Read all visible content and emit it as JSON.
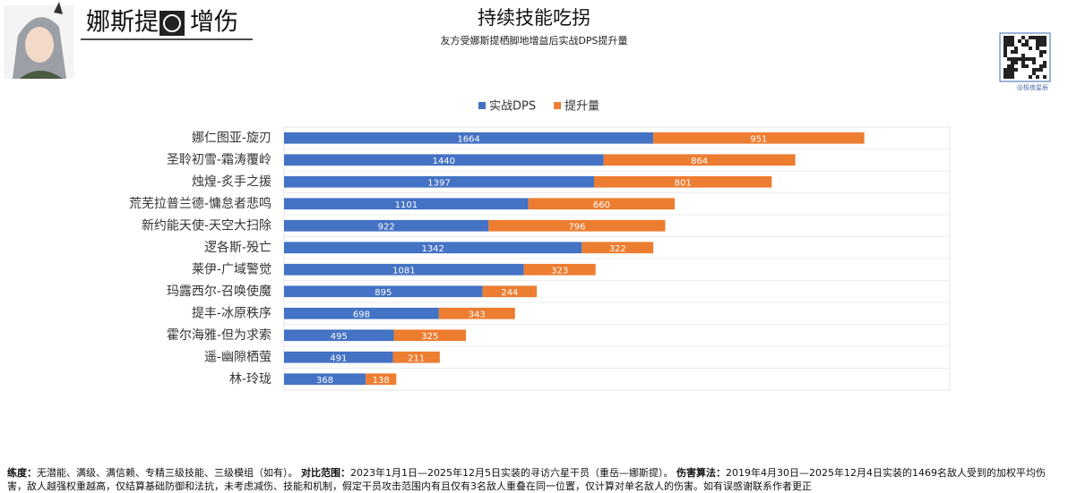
{
  "header": {
    "title_left": "娜斯提",
    "title_right": "增伤",
    "watermark": "@极夜星辰"
  },
  "chart_data": {
    "type": "bar",
    "orientation": "horizontal",
    "stacked": true,
    "title": "持续技能吃拐",
    "subtitle": "友方受娜斯提栖脚地增益后实战DPS提升量",
    "categories": [
      "娜仁图亚-旋刃",
      "圣聆初雪-霜涛覆岭",
      "烛煌-炙手之援",
      "荒芜拉普兰德-慵怠者悲鸣",
      "新约能天使-天空大扫除",
      "逻各斯-殁亡",
      "莱伊-广域警觉",
      "玛露西尔-召唤使魔",
      "提丰-冰原秩序",
      "霍尔海雅-但为求索",
      "遥-幽隙栖萤",
      "林-玲珑"
    ],
    "series": [
      {
        "name": "实战DPS",
        "color": "#4472c4",
        "values": [
          1664,
          1440,
          1397,
          1101,
          922,
          1342,
          1081,
          895,
          698,
          495,
          491,
          368
        ]
      },
      {
        "name": "提升量",
        "color": "#ed7d31",
        "values": [
          951,
          864,
          801,
          660,
          796,
          322,
          323,
          244,
          343,
          325,
          211,
          138
        ]
      }
    ],
    "xlim": [
      0,
      3000
    ],
    "legend": "top"
  },
  "footer": [
    {
      "label": "练度：",
      "text": "无潜能、满级、满信赖、专精三级技能、三级模组（如有）。"
    },
    {
      "label": "对比范围：",
      "text": "2023年1月1日—2025年12月5日实装的寻访六星干员（重岳—娜斯提）。"
    },
    {
      "label": "伤害算法：",
      "text": "2019年4月30日—2025年12月4日实装的1469名敌人受到的加权平均伤害，敌人越强权重越高，仅结算基础防御和法抗，未考虑减伤、技能和机制，假定干员攻击范围内有且仅有3名敌人重叠在同一位置，仅计算对单名敌人的伤害。如有误感谢联系作者更正"
    }
  ]
}
